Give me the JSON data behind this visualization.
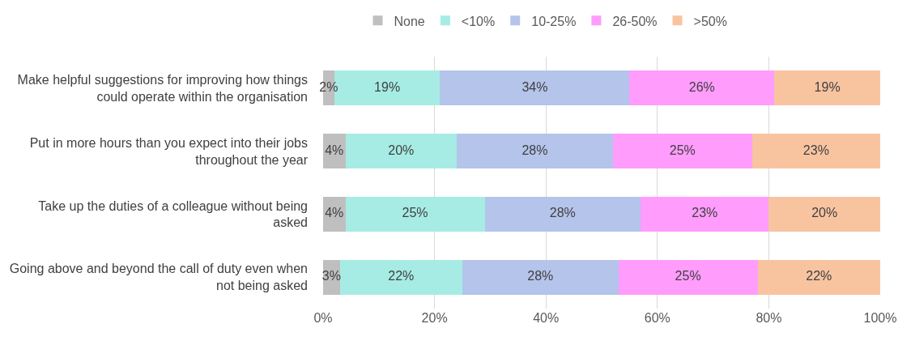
{
  "chart_data": {
    "type": "bar",
    "orientation": "horizontal",
    "stacked": true,
    "categories": [
      "Make helpful suggestions for improving how things could operate within the organisation",
      "Put in more hours than you expect into their jobs throughout the year",
      "Take up the duties of a colleague without being asked",
      "Going above and beyond the call of duty even when not being asked"
    ],
    "series": [
      {
        "name": "None",
        "color": "#bfbfbf",
        "values": [
          2,
          4,
          4,
          3
        ],
        "value_labels": [
          "2%",
          "4%",
          "4%",
          "3%"
        ]
      },
      {
        "name": "<10%",
        "color": "#a6ece4",
        "values": [
          19,
          20,
          25,
          22
        ],
        "value_labels": [
          "19%",
          "20%",
          "25%",
          "22%"
        ]
      },
      {
        "name": "10-25%",
        "color": "#b4c4ea",
        "values": [
          34,
          28,
          28,
          28
        ],
        "value_labels": [
          "34%",
          "28%",
          "28%",
          "28%"
        ]
      },
      {
        "name": "26-50%",
        "color": "#ff9cfc",
        "values": [
          26,
          25,
          23,
          25
        ],
        "value_labels": [
          "26%",
          "25%",
          "23%",
          "25%"
        ]
      },
      {
        "name": ">50%",
        "color": "#f8c4a0",
        "values": [
          19,
          23,
          20,
          22
        ],
        "value_labels": [
          "19%",
          "23%",
          "20%",
          "22%"
        ]
      }
    ],
    "xlim": [
      0,
      100
    ],
    "xticks": [
      {
        "value": 0,
        "label": "0%"
      },
      {
        "value": 20,
        "label": "20%"
      },
      {
        "value": 40,
        "label": "40%"
      },
      {
        "value": 60,
        "label": "60%"
      },
      {
        "value": 80,
        "label": "80%"
      },
      {
        "value": 100,
        "label": "100%"
      }
    ],
    "grid": "x",
    "legend": "top"
  }
}
